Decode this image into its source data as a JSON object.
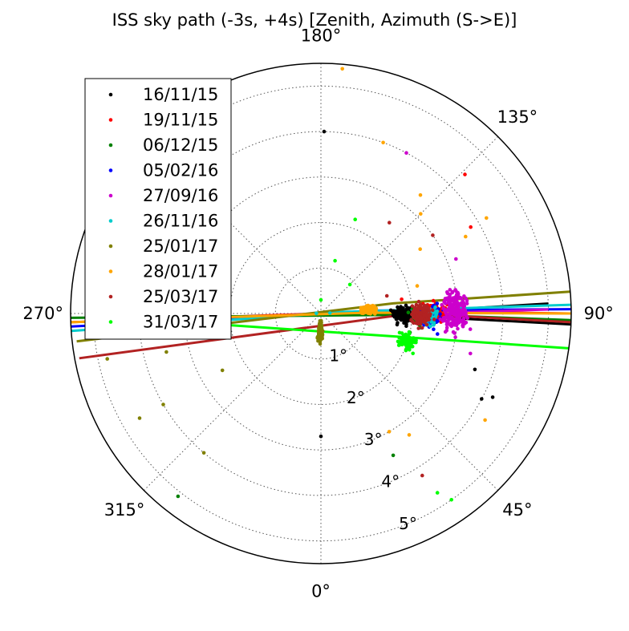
{
  "chart_data": {
    "type": "scatter",
    "projection": "polar",
    "title": "ISS sky path (-3s, +4s) [Zenith, Azimuth (S->E)]",
    "theta_zero_location": "bottom",
    "theta_direction": "counterclockwise",
    "angular_ticks": [
      {
        "deg": 0,
        "label": "0°"
      },
      {
        "deg": 45,
        "label": "45°"
      },
      {
        "deg": 90,
        "label": "90°"
      },
      {
        "deg": 135,
        "label": "135°"
      },
      {
        "deg": 180,
        "label": "180°"
      },
      {
        "deg": 270,
        "label": "270°"
      },
      {
        "deg": 315,
        "label": "315°"
      }
    ],
    "radial_ticks": [
      {
        "value": 1,
        "label": "1°"
      },
      {
        "value": 2,
        "label": "2°"
      },
      {
        "value": 3,
        "label": "3°"
      },
      {
        "value": 4,
        "label": "4°"
      },
      {
        "value": 5,
        "label": "5°"
      }
    ],
    "rlim": [
      0,
      5.5
    ],
    "grid": true,
    "legend_position": "upper-left",
    "series": [
      {
        "name": "16/11/15",
        "color": "#000000",
        "cluster": [
          89,
          1.8
        ],
        "spread": [
          0.45,
          0.09
        ],
        "n": 120,
        "line": [
          [
            92.5,
            5.0
          ],
          [
            89.4,
            1.2
          ],
          [
            87.5,
            5.5
          ]
        ],
        "outliers": [
          [
            88,
            1.8
          ],
          [
            62,
            4.0
          ],
          [
            64,
            4.2
          ],
          [
            179,
            4.0
          ],
          [
            70,
            3.6
          ],
          [
            86,
            1.75
          ],
          [
            92,
            1.6
          ],
          [
            0,
            2.7
          ]
        ]
      },
      {
        "name": "19/11/15",
        "color": "#ff0000",
        "cluster": [
          91,
          2.5
        ],
        "spread": [
          0.45,
          0.1
        ],
        "n": 60,
        "line": [
          [
            272.0,
            5.5
          ],
          [
            92.0,
            1.5
          ],
          [
            90.0,
            5.5
          ]
        ],
        "outliers": [
          [
            134,
            4.4
          ],
          [
            120,
            3.8
          ],
          [
            100,
            1.8
          ]
        ]
      },
      {
        "name": "06/12/15",
        "color": "#008000",
        "cluster": [
          89,
          2.2
        ],
        "spread": [
          0.45,
          0.1
        ],
        "n": 60,
        "line": [
          [
            271.0,
            5.5
          ],
          [
            89.3,
            2.2
          ],
          [
            88.5,
            5.5
          ]
        ],
        "outliers": [
          [
            322,
            5.1
          ],
          [
            27,
            3.5
          ],
          [
            78,
            2.0
          ]
        ]
      },
      {
        "name": "05/02/16",
        "color": "#0000ff",
        "cluster": [
          88,
          2.4
        ],
        "spread": [
          0.45,
          0.09
        ],
        "n": 70,
        "line": [
          [
            273.0,
            5.5
          ],
          [
            93.0,
            1.2
          ],
          [
            91.0,
            5.5
          ]
        ],
        "outliers": [
          [
            80,
            2.6
          ],
          [
            82,
            2.5
          ]
        ]
      },
      {
        "name": "27/09/16",
        "color": "#cc00cc",
        "cluster": [
          91,
          2.95
        ],
        "spread": [
          0.6,
          0.12
        ],
        "n": 220,
        "line": [
          [
            91.0,
            5.0
          ],
          [
            90.5,
            3.0
          ]
        ],
        "outliers": [
          [
            152,
            4.0
          ],
          [
            112,
            3.2
          ],
          [
            75,
            3.4
          ],
          [
            80,
            3.0
          ],
          [
            100,
            3.0
          ],
          [
            84,
            3.3
          ],
          [
            96,
            3.2
          ]
        ]
      },
      {
        "name": "26/11/16",
        "color": "#00cccc",
        "cluster": [
          89,
          2.4
        ],
        "spread": [
          0.45,
          0.09
        ],
        "n": 50,
        "line": [
          [
            274.0,
            5.5
          ],
          [
            94.0,
            0.5
          ],
          [
            92.0,
            5.5
          ]
        ],
        "outliers": [
          [
            93,
            0.2
          ],
          [
            268,
            0.1
          ]
        ]
      },
      {
        "name": "25/01/17",
        "color": "#808000",
        "cluster": [
          358,
          0.4
        ],
        "spread": [
          0.5,
          0.08
        ],
        "n": 180,
        "line": [
          [
            276.5,
            5.4
          ],
          [
            98.0,
            1.6
          ],
          [
            95.0,
            5.5
          ]
        ],
        "outliers": [
          [
            210,
            4.2
          ],
          [
            242,
            3.8
          ],
          [
            300,
            4.0
          ],
          [
            320,
            4.0
          ],
          [
            300,
            4.6
          ],
          [
            284,
            3.5
          ],
          [
            300,
            2.5
          ],
          [
            282,
            4.8
          ]
        ]
      },
      {
        "name": "28/01/17",
        "color": "#ffa500",
        "cluster": [
          95,
          1.05
        ],
        "spread": [
          0.35,
          0.07
        ],
        "n": 160,
        "line": [
          [
            272.0,
            5.5
          ],
          [
            91.0,
            1.0
          ],
          [
            90.0,
            5.5
          ]
        ],
        "outliers": [
          [
            175,
            5.4
          ],
          [
            160,
            4.0
          ],
          [
            140,
            3.4
          ],
          [
            135,
            3.1
          ],
          [
            30,
            3.0
          ],
          [
            36,
            3.3
          ],
          [
            120,
            4.2
          ],
          [
            118,
            3.6
          ],
          [
            123,
            2.6
          ],
          [
            106,
            2.2
          ],
          [
            57,
            4.3
          ]
        ]
      },
      {
        "name": "25/03/17",
        "color": "#b22222",
        "cluster": [
          89,
          2.2
        ],
        "spread": [
          0.45,
          0.09
        ],
        "n": 150,
        "line": [
          [
            280.5,
            5.4
          ],
          [
            90.0,
            2.0
          ],
          [
            88.0,
            5.5
          ]
        ],
        "outliers": [
          [
            125,
            3.0
          ],
          [
            143,
            2.5
          ],
          [
            240,
            3.2
          ],
          [
            105,
            1.5
          ],
          [
            32,
            4.2
          ]
        ]
      },
      {
        "name": "31/03/17",
        "color": "#00ff00",
        "cluster": [
          72,
          2.0
        ],
        "spread": [
          0.45,
          0.09
        ],
        "n": 80,
        "line": [
          [
            271.0,
            4.6
          ],
          [
            82.0,
            5.5
          ]
        ],
        "outliers": [
          [
            35,
            5.0
          ],
          [
            160,
            2.2
          ],
          [
            165,
            1.2
          ],
          [
            33,
            4.7
          ],
          [
            70,
            1.8
          ],
          [
            135,
            0.9
          ],
          [
            180,
            0.3
          ]
        ]
      }
    ]
  }
}
